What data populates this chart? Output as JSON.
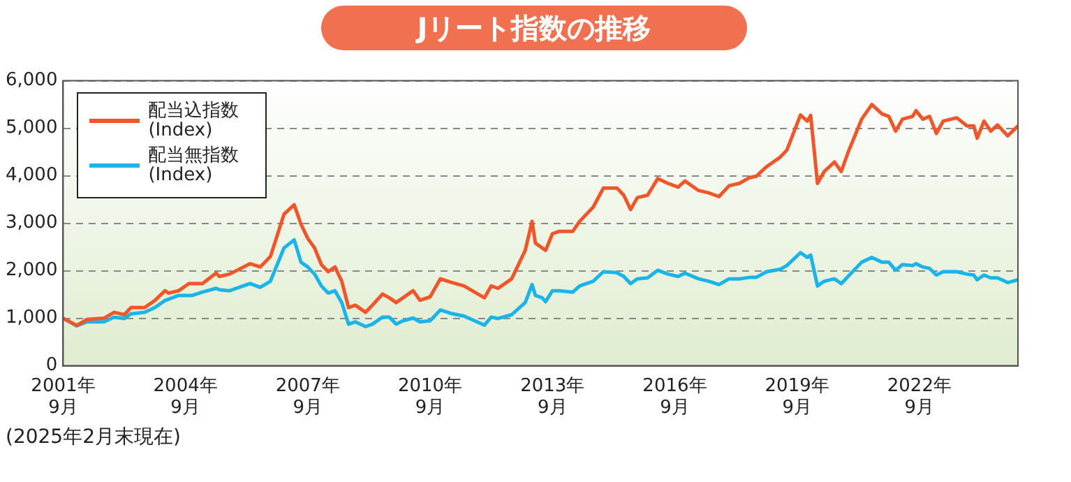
{
  "chart_data": {
    "type": "line",
    "title": "Jリート指数の推移",
    "x": [
      "2001-09",
      "2002-01",
      "2002-04",
      "2002-09",
      "2002-12",
      "2003-03",
      "2003-05",
      "2003-09",
      "2003-12",
      "2004-03",
      "2004-04",
      "2004-07",
      "2004-10",
      "2004-11",
      "2005-02",
      "2005-06",
      "2005-07",
      "2005-10",
      "2006-04",
      "2006-07",
      "2006-10",
      "2007-02",
      "2007-05",
      "2007-07",
      "2007-09",
      "2007-11",
      "2008-01",
      "2008-03",
      "2008-05",
      "2008-07",
      "2008-09",
      "2008-11",
      "2009-02",
      "2009-04",
      "2009-07",
      "2009-09",
      "2009-11",
      "2010-01",
      "2010-04",
      "2010-06",
      "2010-09",
      "2010-12",
      "2011-03",
      "2011-07",
      "2012-01",
      "2012-03",
      "2012-05",
      "2012-09",
      "2013-01",
      "2013-03",
      "2013-04",
      "2013-06",
      "2013-07",
      "2013-09",
      "2013-11",
      "2014-03",
      "2014-05",
      "2014-09",
      "2014-12",
      "2015-04",
      "2015-06",
      "2015-08",
      "2015-10",
      "2016-01",
      "2016-04",
      "2016-07",
      "2016-10",
      "2016-12",
      "2017-04",
      "2017-07",
      "2017-10",
      "2018-01",
      "2018-04",
      "2018-07",
      "2018-09",
      "2018-12",
      "2019-04",
      "2019-06",
      "2019-10",
      "2019-12",
      "2020-01",
      "2020-03",
      "2020-05",
      "2020-08",
      "2020-10",
      "2020-12",
      "2021-04",
      "2021-07",
      "2021-10",
      "2021-12",
      "2022-02",
      "2022-04",
      "2022-07",
      "2022-08",
      "2022-10",
      "2022-12",
      "2023-02",
      "2023-04",
      "2023-08",
      "2023-11",
      "2024-01",
      "2024-02",
      "2024-04",
      "2024-06",
      "2024-08",
      "2024-11",
      "2025-02"
    ],
    "series": [
      {
        "name": "配当込指数 (Index)",
        "color": "#f0562a",
        "values": [
          1000,
          850,
          975,
          1000,
          1125,
          1075,
          1225,
          1225,
          1375,
          1580,
          1530,
          1580,
          1730,
          1730,
          1730,
          1950,
          1880,
          1930,
          2150,
          2080,
          2300,
          3190,
          3390,
          2980,
          2680,
          2480,
          2130,
          1980,
          2080,
          1780,
          1225,
          1275,
          1125,
          1275,
          1510,
          1430,
          1330,
          1430,
          1580,
          1380,
          1450,
          1830,
          1760,
          1680,
          1430,
          1680,
          1630,
          1830,
          2430,
          3040,
          2580,
          2480,
          2430,
          2780,
          2830,
          2830,
          3040,
          3340,
          3740,
          3740,
          3590,
          3290,
          3540,
          3590,
          3940,
          3840,
          3760,
          3890,
          3690,
          3640,
          3560,
          3790,
          3840,
          3960,
          3990,
          4190,
          4390,
          4540,
          5280,
          5150,
          5270,
          3840,
          4090,
          4290,
          4090,
          4490,
          5190,
          5500,
          5300,
          5250,
          4940,
          5190,
          5250,
          5370,
          5190,
          5250,
          4890,
          5150,
          5220,
          5050,
          5050,
          4790,
          5150,
          4940,
          5070,
          4840,
          5050
        ]
      },
      {
        "name": "配当無指数 (Index)",
        "color": "#1ab4e8",
        "values": [
          1000,
          840,
          925,
          925,
          1025,
          995,
          1095,
          1125,
          1225,
          1375,
          1400,
          1480,
          1480,
          1480,
          1550,
          1630,
          1600,
          1580,
          1730,
          1650,
          1780,
          2480,
          2650,
          2180,
          2080,
          1930,
          1680,
          1530,
          1580,
          1330,
          875,
          925,
          825,
          875,
          1025,
          1025,
          875,
          945,
          1005,
          925,
          945,
          1175,
          1105,
          1045,
          855,
          1025,
          995,
          1075,
          1330,
          1710,
          1480,
          1430,
          1350,
          1580,
          1580,
          1550,
          1680,
          1780,
          1980,
          1960,
          1880,
          1730,
          1830,
          1850,
          2010,
          1930,
          1880,
          1950,
          1830,
          1780,
          1710,
          1830,
          1830,
          1860,
          1860,
          1980,
          2030,
          2110,
          2380,
          2280,
          2330,
          1680,
          1780,
          1830,
          1730,
          1880,
          2180,
          2280,
          2180,
          2180,
          2010,
          2130,
          2110,
          2150,
          2080,
          2050,
          1910,
          1980,
          1980,
          1930,
          1910,
          1810,
          1910,
          1850,
          1850,
          1750,
          1810
        ]
      }
    ],
    "xlim": [
      "2001-09",
      "2025-02"
    ],
    "xticks": [
      {
        "value": "2001-09",
        "label": "2001年\n9月"
      },
      {
        "value": "2004-09",
        "label": "2004年\n9月"
      },
      {
        "value": "2007-09",
        "label": "2007年\n9月"
      },
      {
        "value": "2010-09",
        "label": "2010年\n9月"
      },
      {
        "value": "2013-09",
        "label": "2013年\n9月"
      },
      {
        "value": "2016-09",
        "label": "2016年\n9月"
      },
      {
        "value": "2019-09",
        "label": "2019年\n9月"
      },
      {
        "value": "2022-09",
        "label": "2022年\n9月"
      }
    ],
    "ylim": [
      0,
      6000
    ],
    "yticks": [
      0,
      {
        "value": 1000,
        "label": "1,000"
      },
      {
        "value": 2000,
        "label": "2,000"
      },
      {
        "value": 3000,
        "label": "3,000"
      },
      {
        "value": 4000,
        "label": "4,000"
      },
      {
        "value": 5000,
        "label": "5,000"
      },
      {
        "value": 6000,
        "label": "6,000"
      }
    ],
    "grid": "y",
    "legend": "top left",
    "marker": "none",
    "line_style": "solid",
    "annotations": [
      "(2025年2月末現在)"
    ]
  }
}
